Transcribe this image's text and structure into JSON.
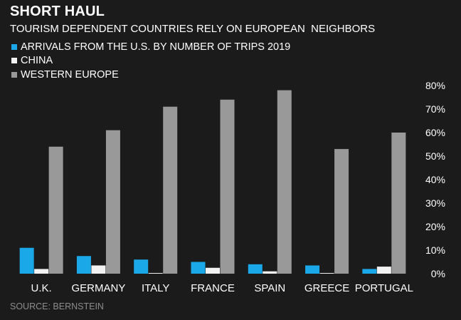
{
  "chart_data": {
    "type": "bar",
    "title": "SHORT HAUL",
    "subtitle": "TOURISM DEPENDENT COUNTRIES RELY ON EUROPEAN  NEIGHBORS",
    "categories": [
      "U.K.",
      "GERMANY",
      "ITALY",
      "FRANCE",
      "SPAIN",
      "GREECE",
      "PORTUGAL"
    ],
    "series": [
      {
        "name": "ARRIVALS FROM THE U.S. BY NUMBER OF TRIPS 2019",
        "color": "#1aa8e8",
        "values": [
          11,
          7.5,
          6,
          5,
          4,
          3.5,
          2
        ]
      },
      {
        "name": "CHINA",
        "color": "#f2f2f2",
        "values": [
          2,
          3.5,
          0.3,
          2.5,
          1,
          0.3,
          3
        ]
      },
      {
        "name": "WESTERN EUROPE",
        "color": "#999999",
        "values": [
          54,
          61,
          71,
          74,
          78,
          53,
          60
        ]
      }
    ],
    "ylim": [
      0,
      80
    ],
    "yticks": [
      "0%",
      "10%",
      "20%",
      "30%",
      "40%",
      "50%",
      "60%",
      "70%",
      "80%"
    ],
    "ytick_values": [
      0,
      10,
      20,
      30,
      40,
      50,
      60,
      70,
      80
    ],
    "ylabel": "",
    "xlabel": "",
    "yaxis_position": "right",
    "legend_position": "top-left",
    "grid": false
  },
  "source": "SOURCE: BERNSTEIN"
}
